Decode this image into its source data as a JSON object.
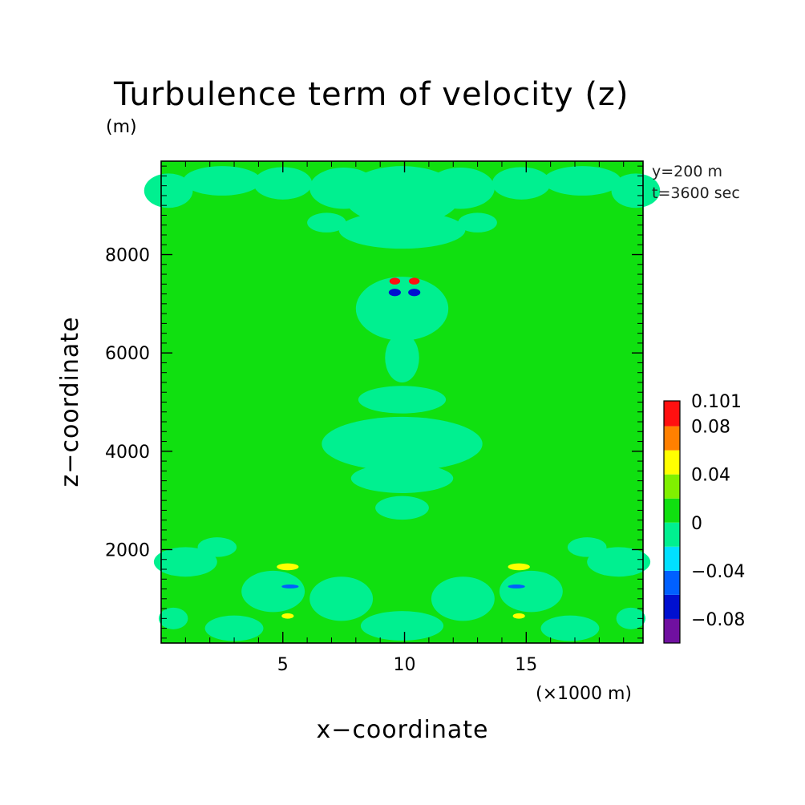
{
  "chart_data": {
    "type": "heatmap",
    "title": "Turbulence term of velocity (z)",
    "y_unit": "(m)",
    "x_unit": "(×1000 m)",
    "xlabel": "x−coordinate",
    "ylabel": "z−coordinate",
    "annotations": [
      "y=200 m",
      "t=3600 sec"
    ],
    "xlim": [
      0,
      19.8
    ],
    "ylim": [
      100,
      9900
    ],
    "x_ticks": [
      5,
      10,
      15
    ],
    "x_tick_labels": [
      "5",
      "10",
      "15"
    ],
    "y_ticks": [
      2000,
      4000,
      6000,
      8000
    ],
    "y_tick_labels": [
      "2000",
      "4000",
      "6000",
      "8000"
    ],
    "background_level": "0 to 0.02",
    "colorbar": {
      "levels": [
        {
          "from": -0.1,
          "to": -0.08,
          "color": "#7010a0"
        },
        {
          "from": -0.08,
          "to": -0.06,
          "color": "#0010d0"
        },
        {
          "from": -0.06,
          "to": -0.04,
          "color": "#0060ff"
        },
        {
          "from": -0.04,
          "to": -0.02,
          "color": "#00e0ff"
        },
        {
          "from": -0.02,
          "to": 0,
          "color": "#00f090"
        },
        {
          "from": 0,
          "to": 0.02,
          "color": "#10e010"
        },
        {
          "from": 0.02,
          "to": 0.04,
          "color": "#80f000"
        },
        {
          "from": 0.04,
          "to": 0.06,
          "color": "#ffff00"
        },
        {
          "from": 0.06,
          "to": 0.08,
          "color": "#ff8000"
        },
        {
          "from": 0.08,
          "to": 0.1,
          "color": "#ff1010"
        }
      ],
      "labels": [
        {
          "value": 0.101,
          "text": "0.101"
        },
        {
          "value": 0.08,
          "text": "0.08"
        },
        {
          "value": 0.04,
          "text": "0.04"
        },
        {
          "value": 0,
          "text": "0"
        },
        {
          "value": -0.04,
          "text": "−0.04"
        },
        {
          "value": -0.08,
          "text": "−0.08"
        }
      ]
    },
    "features": [
      {
        "kind": "patch",
        "level": -0.02,
        "x": 0.3,
        "z": 9300,
        "rx": 1.0,
        "rz": 350
      },
      {
        "kind": "patch",
        "level": -0.02,
        "x": 2.5,
        "z": 9500,
        "rx": 1.6,
        "rz": 300
      },
      {
        "kind": "patch",
        "level": -0.02,
        "x": 5.0,
        "z": 9450,
        "rx": 1.2,
        "rz": 330
      },
      {
        "kind": "patch",
        "level": -0.02,
        "x": 7.5,
        "z": 9350,
        "rx": 1.4,
        "rz": 420
      },
      {
        "kind": "patch",
        "level": -0.02,
        "x": 9.9,
        "z": 9200,
        "rx": 2.4,
        "rz": 600
      },
      {
        "kind": "patch",
        "level": -0.02,
        "x": 12.3,
        "z": 9350,
        "rx": 1.4,
        "rz": 420
      },
      {
        "kind": "patch",
        "level": -0.02,
        "x": 14.8,
        "z": 9450,
        "rx": 1.2,
        "rz": 330
      },
      {
        "kind": "patch",
        "level": -0.02,
        "x": 17.3,
        "z": 9500,
        "rx": 1.6,
        "rz": 300
      },
      {
        "kind": "patch",
        "level": -0.02,
        "x": 19.5,
        "z": 9300,
        "rx": 1.0,
        "rz": 350
      },
      {
        "kind": "patch",
        "level": -0.02,
        "x": 9.9,
        "z": 8500,
        "rx": 2.6,
        "rz": 380
      },
      {
        "kind": "patch",
        "level": -0.02,
        "x": 6.8,
        "z": 8650,
        "rx": 0.8,
        "rz": 200
      },
      {
        "kind": "patch",
        "level": -0.02,
        "x": 13.0,
        "z": 8650,
        "rx": 0.8,
        "rz": 200
      },
      {
        "kind": "patch",
        "level": -0.02,
        "x": 9.9,
        "z": 6900,
        "rx": 1.9,
        "rz": 650
      },
      {
        "kind": "patch",
        "level": -0.02,
        "x": 9.9,
        "z": 5900,
        "rx": 0.7,
        "rz": 500
      },
      {
        "kind": "patch",
        "level": -0.02,
        "x": 9.9,
        "z": 5050,
        "rx": 1.8,
        "rz": 280
      },
      {
        "kind": "patch",
        "level": -0.02,
        "x": 9.9,
        "z": 4150,
        "rx": 3.3,
        "rz": 550
      },
      {
        "kind": "patch",
        "level": -0.02,
        "x": 9.9,
        "z": 3450,
        "rx": 2.1,
        "rz": 300
      },
      {
        "kind": "patch",
        "level": -0.02,
        "x": 9.9,
        "z": 2850,
        "rx": 1.1,
        "rz": 240
      },
      {
        "kind": "patch",
        "level": -0.02,
        "x": 1.0,
        "z": 1750,
        "rx": 1.3,
        "rz": 300
      },
      {
        "kind": "patch",
        "level": -0.02,
        "x": 2.3,
        "z": 2050,
        "rx": 0.8,
        "rz": 200
      },
      {
        "kind": "patch",
        "level": -0.02,
        "x": 18.8,
        "z": 1750,
        "rx": 1.3,
        "rz": 300
      },
      {
        "kind": "patch",
        "level": -0.02,
        "x": 17.5,
        "z": 2050,
        "rx": 0.8,
        "rz": 200
      },
      {
        "kind": "patch",
        "level": -0.02,
        "x": 4.6,
        "z": 1150,
        "rx": 1.3,
        "rz": 420
      },
      {
        "kind": "patch",
        "level": -0.02,
        "x": 15.2,
        "z": 1150,
        "rx": 1.3,
        "rz": 420
      },
      {
        "kind": "patch",
        "level": -0.02,
        "x": 7.4,
        "z": 1000,
        "rx": 1.3,
        "rz": 450
      },
      {
        "kind": "patch",
        "level": -0.02,
        "x": 12.4,
        "z": 1000,
        "rx": 1.3,
        "rz": 450
      },
      {
        "kind": "patch",
        "level": -0.02,
        "x": 9.9,
        "z": 450,
        "rx": 1.7,
        "rz": 300
      },
      {
        "kind": "patch",
        "level": -0.02,
        "x": 3.0,
        "z": 400,
        "rx": 1.2,
        "rz": 260
      },
      {
        "kind": "patch",
        "level": -0.02,
        "x": 16.8,
        "z": 400,
        "rx": 1.2,
        "rz": 260
      },
      {
        "kind": "patch",
        "level": -0.02,
        "x": 0.5,
        "z": 600,
        "rx": 0.6,
        "rz": 220
      },
      {
        "kind": "patch",
        "level": -0.02,
        "x": 19.3,
        "z": 600,
        "rx": 0.6,
        "rz": 220
      },
      {
        "kind": "blob",
        "level": 0.08,
        "x": 9.6,
        "z": 7460,
        "rx": 0.22,
        "rz": 70
      },
      {
        "kind": "blob",
        "level": 0.08,
        "x": 10.4,
        "z": 7460,
        "rx": 0.22,
        "rz": 70
      },
      {
        "kind": "blob",
        "level": -0.08,
        "x": 9.6,
        "z": 7230,
        "rx": 0.25,
        "rz": 75
      },
      {
        "kind": "blob",
        "level": -0.08,
        "x": 10.4,
        "z": 7230,
        "rx": 0.25,
        "rz": 75
      },
      {
        "kind": "blob",
        "level": 0.04,
        "x": 5.2,
        "z": 1650,
        "rx": 0.45,
        "rz": 70
      },
      {
        "kind": "blob",
        "level": 0.04,
        "x": 14.7,
        "z": 1650,
        "rx": 0.45,
        "rz": 70
      },
      {
        "kind": "blob",
        "level": -0.06,
        "x": 5.3,
        "z": 1250,
        "rx": 0.35,
        "rz": 40
      },
      {
        "kind": "blob",
        "level": -0.06,
        "x": 14.6,
        "z": 1250,
        "rx": 0.35,
        "rz": 40
      },
      {
        "kind": "blob",
        "level": 0.04,
        "x": 5.2,
        "z": 650,
        "rx": 0.25,
        "rz": 55
      },
      {
        "kind": "blob",
        "level": 0.04,
        "x": 14.7,
        "z": 650,
        "rx": 0.25,
        "rz": 55
      }
    ]
  }
}
